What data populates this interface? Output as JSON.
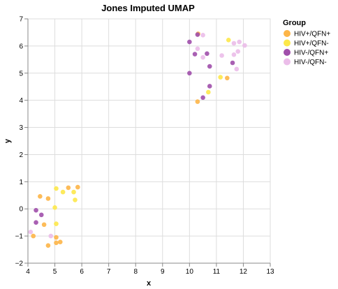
{
  "chart_data": {
    "type": "scatter",
    "title": "Jones Imputed UMAP",
    "xlabel": "x",
    "ylabel": "y",
    "xlim": [
      4,
      13
    ],
    "ylim": [
      -2,
      7
    ],
    "x_ticks": [
      4,
      5,
      6,
      7,
      8,
      9,
      10,
      11,
      12,
      13
    ],
    "y_ticks": [
      -2,
      -1,
      0,
      1,
      2,
      3,
      4,
      5,
      6,
      7
    ],
    "grid": true,
    "legend": {
      "title": "Group",
      "placement": "right"
    },
    "series": [
      {
        "name": "HIV+/QFN+",
        "color": "#fdb547",
        "points": [
          [
            4.45,
            0.46
          ],
          [
            4.75,
            0.38
          ],
          [
            4.6,
            -0.58
          ],
          [
            4.2,
            -1.0
          ],
          [
            4.75,
            -1.35
          ],
          [
            5.05,
            -1.25
          ],
          [
            5.2,
            -1.22
          ],
          [
            5.05,
            -1.05
          ],
          [
            5.5,
            0.78
          ],
          [
            5.85,
            0.8
          ],
          [
            10.3,
            3.95
          ],
          [
            10.32,
            6.45
          ],
          [
            11.4,
            4.82
          ]
        ]
      },
      {
        "name": "HIV+/QFN-",
        "color": "#fde84a",
        "points": [
          [
            5.05,
            0.75
          ],
          [
            5.3,
            0.62
          ],
          [
            5.7,
            0.62
          ],
          [
            5.75,
            0.33
          ],
          [
            5.0,
            0.05
          ],
          [
            5.05,
            -0.55
          ],
          [
            10.7,
            4.3
          ],
          [
            11.15,
            4.85
          ],
          [
            11.45,
            6.22
          ]
        ]
      },
      {
        "name": "HIV-/QFN+",
        "color": "#a04fab",
        "points": [
          [
            4.3,
            -0.05
          ],
          [
            4.5,
            -0.22
          ],
          [
            4.3,
            -0.5
          ],
          [
            10.0,
            5.0
          ],
          [
            10.0,
            6.15
          ],
          [
            10.2,
            5.7
          ],
          [
            10.3,
            6.42
          ],
          [
            10.5,
            4.1
          ],
          [
            10.65,
            5.72
          ],
          [
            10.75,
            4.52
          ],
          [
            10.75,
            5.25
          ],
          [
            11.6,
            5.38
          ]
        ]
      },
      {
        "name": "HIV-/QFN-",
        "color": "#ebbde9",
        "points": [
          [
            4.1,
            -0.85
          ],
          [
            4.85,
            -1.0
          ],
          [
            10.3,
            5.9
          ],
          [
            10.5,
            5.58
          ],
          [
            10.5,
            6.4
          ],
          [
            11.2,
            5.65
          ],
          [
            11.65,
            6.1
          ],
          [
            11.65,
            5.68
          ],
          [
            11.8,
            5.8
          ],
          [
            11.75,
            5.15
          ],
          [
            11.85,
            6.15
          ],
          [
            12.05,
            6.02
          ]
        ]
      }
    ]
  }
}
